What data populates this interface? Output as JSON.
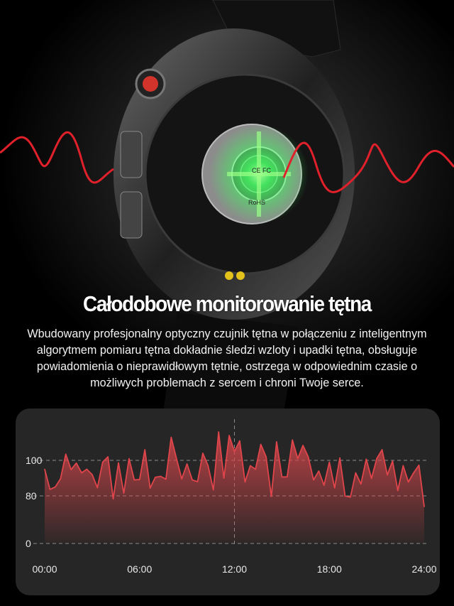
{
  "heading": "Całodobowe monitorowanie tętna",
  "description": "Wbudowany profesjonalny optyczny czujnik tętna w połączeniu z inteligentnym algorytmem pomiaru tętna dokładnie śledzi wzloty i upadki tętna, obsługuje powiadomienia o nieprawidłowym tętnie, ostrzega w odpowiednim czasie o możliwych problemach z sercem i chroni Twoje serce.",
  "watch_markings": [
    "CE",
    "FC",
    "RoHS"
  ],
  "colors": {
    "background": "#000000",
    "card": "#262626",
    "line": "#e0454b",
    "sensor_glow": "#39ff5a",
    "wave": "#e0202a",
    "button_accent": "#d2342c"
  },
  "chart_data": {
    "type": "area",
    "title": "",
    "xlabel": "",
    "ylabel": "",
    "x_ticks": [
      "00:00",
      "06:00",
      "12:00",
      "18:00",
      "24:00"
    ],
    "y_ticks": [
      0,
      80,
      100
    ],
    "xlim": [
      0,
      24
    ],
    "grid": true,
    "scale_note": "nonlinear y axis: 0-80 compressed",
    "marker_line_x": 12,
    "values": [
      95,
      83.7,
      85,
      89.6,
      103.5,
      94.8,
      98.5,
      93,
      95,
      92,
      84.6,
      99,
      102,
      75,
      98.6,
      81.5,
      101,
      89,
      89.2,
      106,
      84.4,
      90.5,
      91,
      89.4,
      113,
      101,
      89.6,
      98,
      89,
      88,
      104,
      97,
      83.4,
      116,
      90,
      114,
      105,
      111,
      87.8,
      97,
      95,
      109,
      102,
      79,
      110.5,
      90.7,
      90.7,
      111.5,
      101,
      108.4,
      102,
      89,
      94,
      86,
      99,
      84.5,
      101.4,
      79.7,
      78,
      93,
      86.7,
      100.7,
      89.8,
      101,
      106,
      91.8,
      99.6,
      83,
      97,
      87.8,
      93,
      97.3,
      62
    ]
  }
}
